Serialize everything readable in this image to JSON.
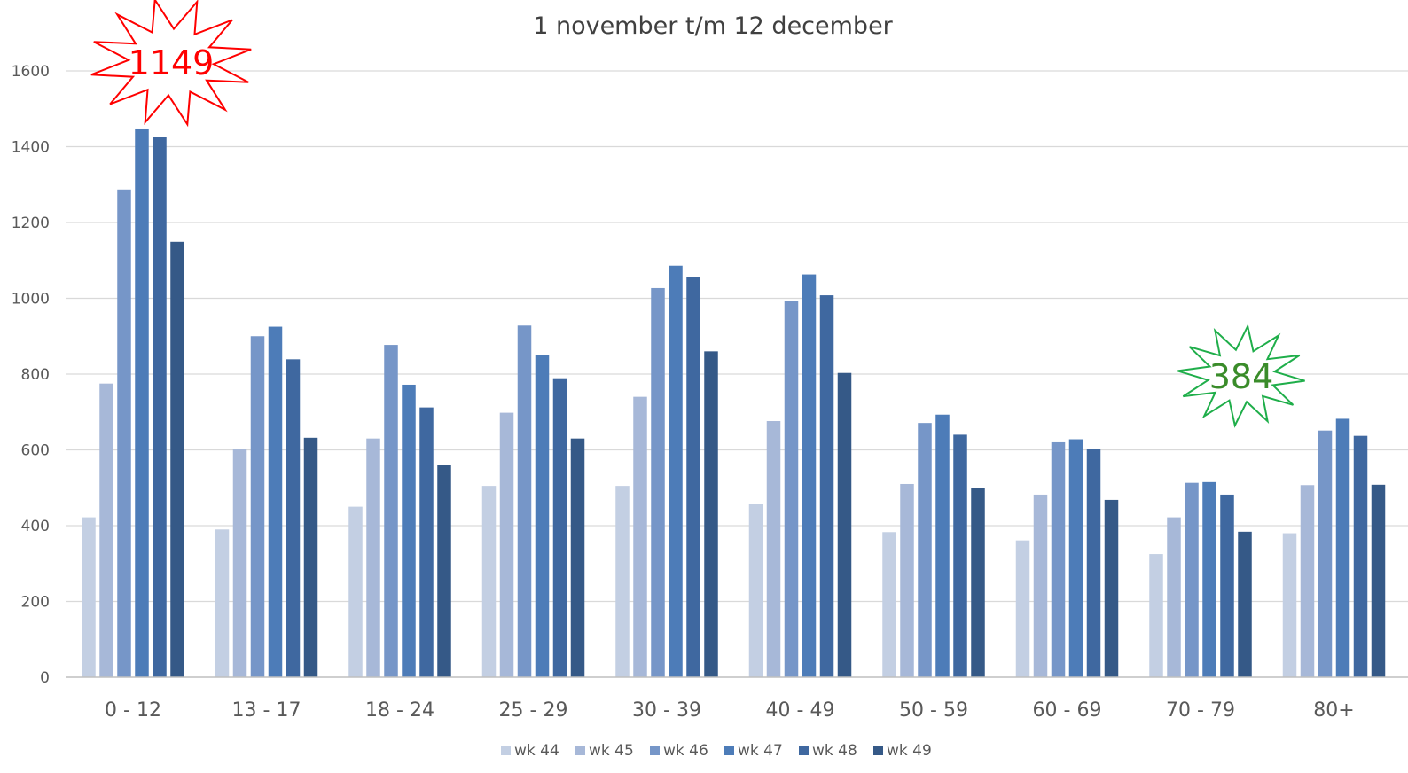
{
  "chart_data": {
    "type": "bar",
    "title": "",
    "subtitle": "1 november t/m 12 december",
    "xlabel": "",
    "ylabel": "",
    "ylim": [
      0,
      1600
    ],
    "yticks": [
      0,
      200,
      400,
      600,
      800,
      1000,
      1200,
      1400,
      1600
    ],
    "grid": true,
    "legend_position": "bottom",
    "categories": [
      "0 - 12",
      "13 - 17",
      "18 - 24",
      "25 - 29",
      "30 - 39",
      "40 - 49",
      "50 - 59",
      "60 - 69",
      "70 - 79",
      "80+"
    ],
    "series": [
      {
        "name": "wk 44",
        "color": "#c3cfe3",
        "values": [
          422,
          390,
          450,
          505,
          505,
          457,
          383,
          361,
          325,
          380
        ]
      },
      {
        "name": "wk 45",
        "color": "#a7b8d8",
        "values": [
          775,
          602,
          630,
          698,
          740,
          676,
          510,
          482,
          422,
          507
        ]
      },
      {
        "name": "wk 46",
        "color": "#7696c8",
        "values": [
          1287,
          900,
          877,
          928,
          1027,
          992,
          671,
          620,
          513,
          651
        ]
      },
      {
        "name": "wk 47",
        "color": "#4d7cb8",
        "values": [
          1448,
          925,
          772,
          850,
          1086,
          1063,
          693,
          628,
          515,
          682
        ]
      },
      {
        "name": "wk 48",
        "color": "#3f68a0",
        "values": [
          1425,
          839,
          712,
          789,
          1055,
          1008,
          640,
          602,
          482,
          637
        ]
      },
      {
        "name": "wk 49",
        "color": "#355987",
        "values": [
          1149,
          632,
          560,
          630,
          860,
          803,
          500,
          468,
          384,
          508
        ]
      }
    ],
    "annotations": [
      {
        "text": "1149",
        "category": "0 - 12",
        "color": "#ff0000"
      },
      {
        "text": "384",
        "category": "70 - 79",
        "color": "#3a8c2a",
        "outline": "#1fae4a"
      }
    ]
  }
}
